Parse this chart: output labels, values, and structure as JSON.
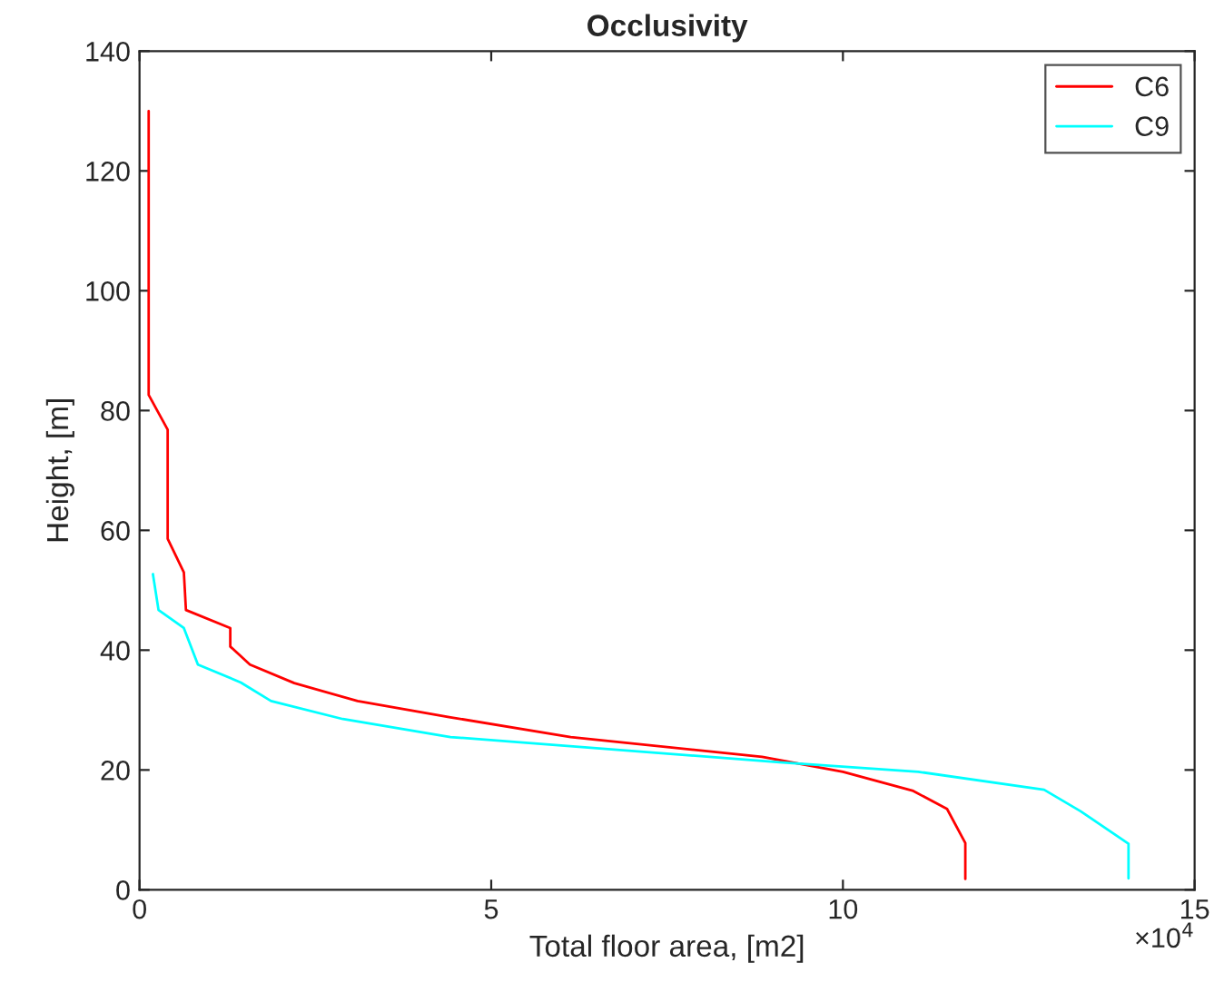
{
  "chart_data": {
    "type": "line",
    "title": "Occlusivity",
    "xlabel": "Total floor area, [m2]",
    "ylabel": "Height, [m]",
    "annotations": [
      "×10$^{4}$"
    ],
    "series": [
      {
        "name": "C6",
        "color": "#ff0000",
        "x": [
          0.13,
          0.13,
          0.4,
          0.4,
          0.63,
          0.66,
          1.29,
          1.29,
          1.57,
          2.2,
          3.1,
          4.42,
          6.13,
          8.85,
          10.0,
          11.0,
          11.48,
          11.74,
          11.74
        ],
        "values": [
          130,
          82.6,
          76.8,
          58.6,
          53,
          46.7,
          43.7,
          40.6,
          37.6,
          34.5,
          31.5,
          28.8,
          25.5,
          22.2,
          19.7,
          16.5,
          13.5,
          7.8,
          1.8
        ]
      },
      {
        "name": "C9",
        "color": "#00ffff",
        "x": [
          0.19,
          0.27,
          0.63,
          0.83,
          1.44,
          1.87,
          2.89,
          4.42,
          9.1,
          11.07,
          12.86,
          13.38,
          14.06,
          14.06
        ],
        "values": [
          52.7,
          46.7,
          43.7,
          37.6,
          34.6,
          31.5,
          28.5,
          25.5,
          21.3,
          19.7,
          16.7,
          13.1,
          7.7,
          1.9
        ]
      }
    ],
    "xlim": [
      0,
      15
    ],
    "xticks": [
      0,
      5,
      10,
      15
    ],
    "ylim": [
      0,
      140
    ],
    "yticks": [
      0,
      20,
      40,
      60,
      80,
      100,
      120,
      140
    ],
    "grid": false,
    "legend": "top right",
    "line_style": "solid",
    "marker": "none"
  }
}
